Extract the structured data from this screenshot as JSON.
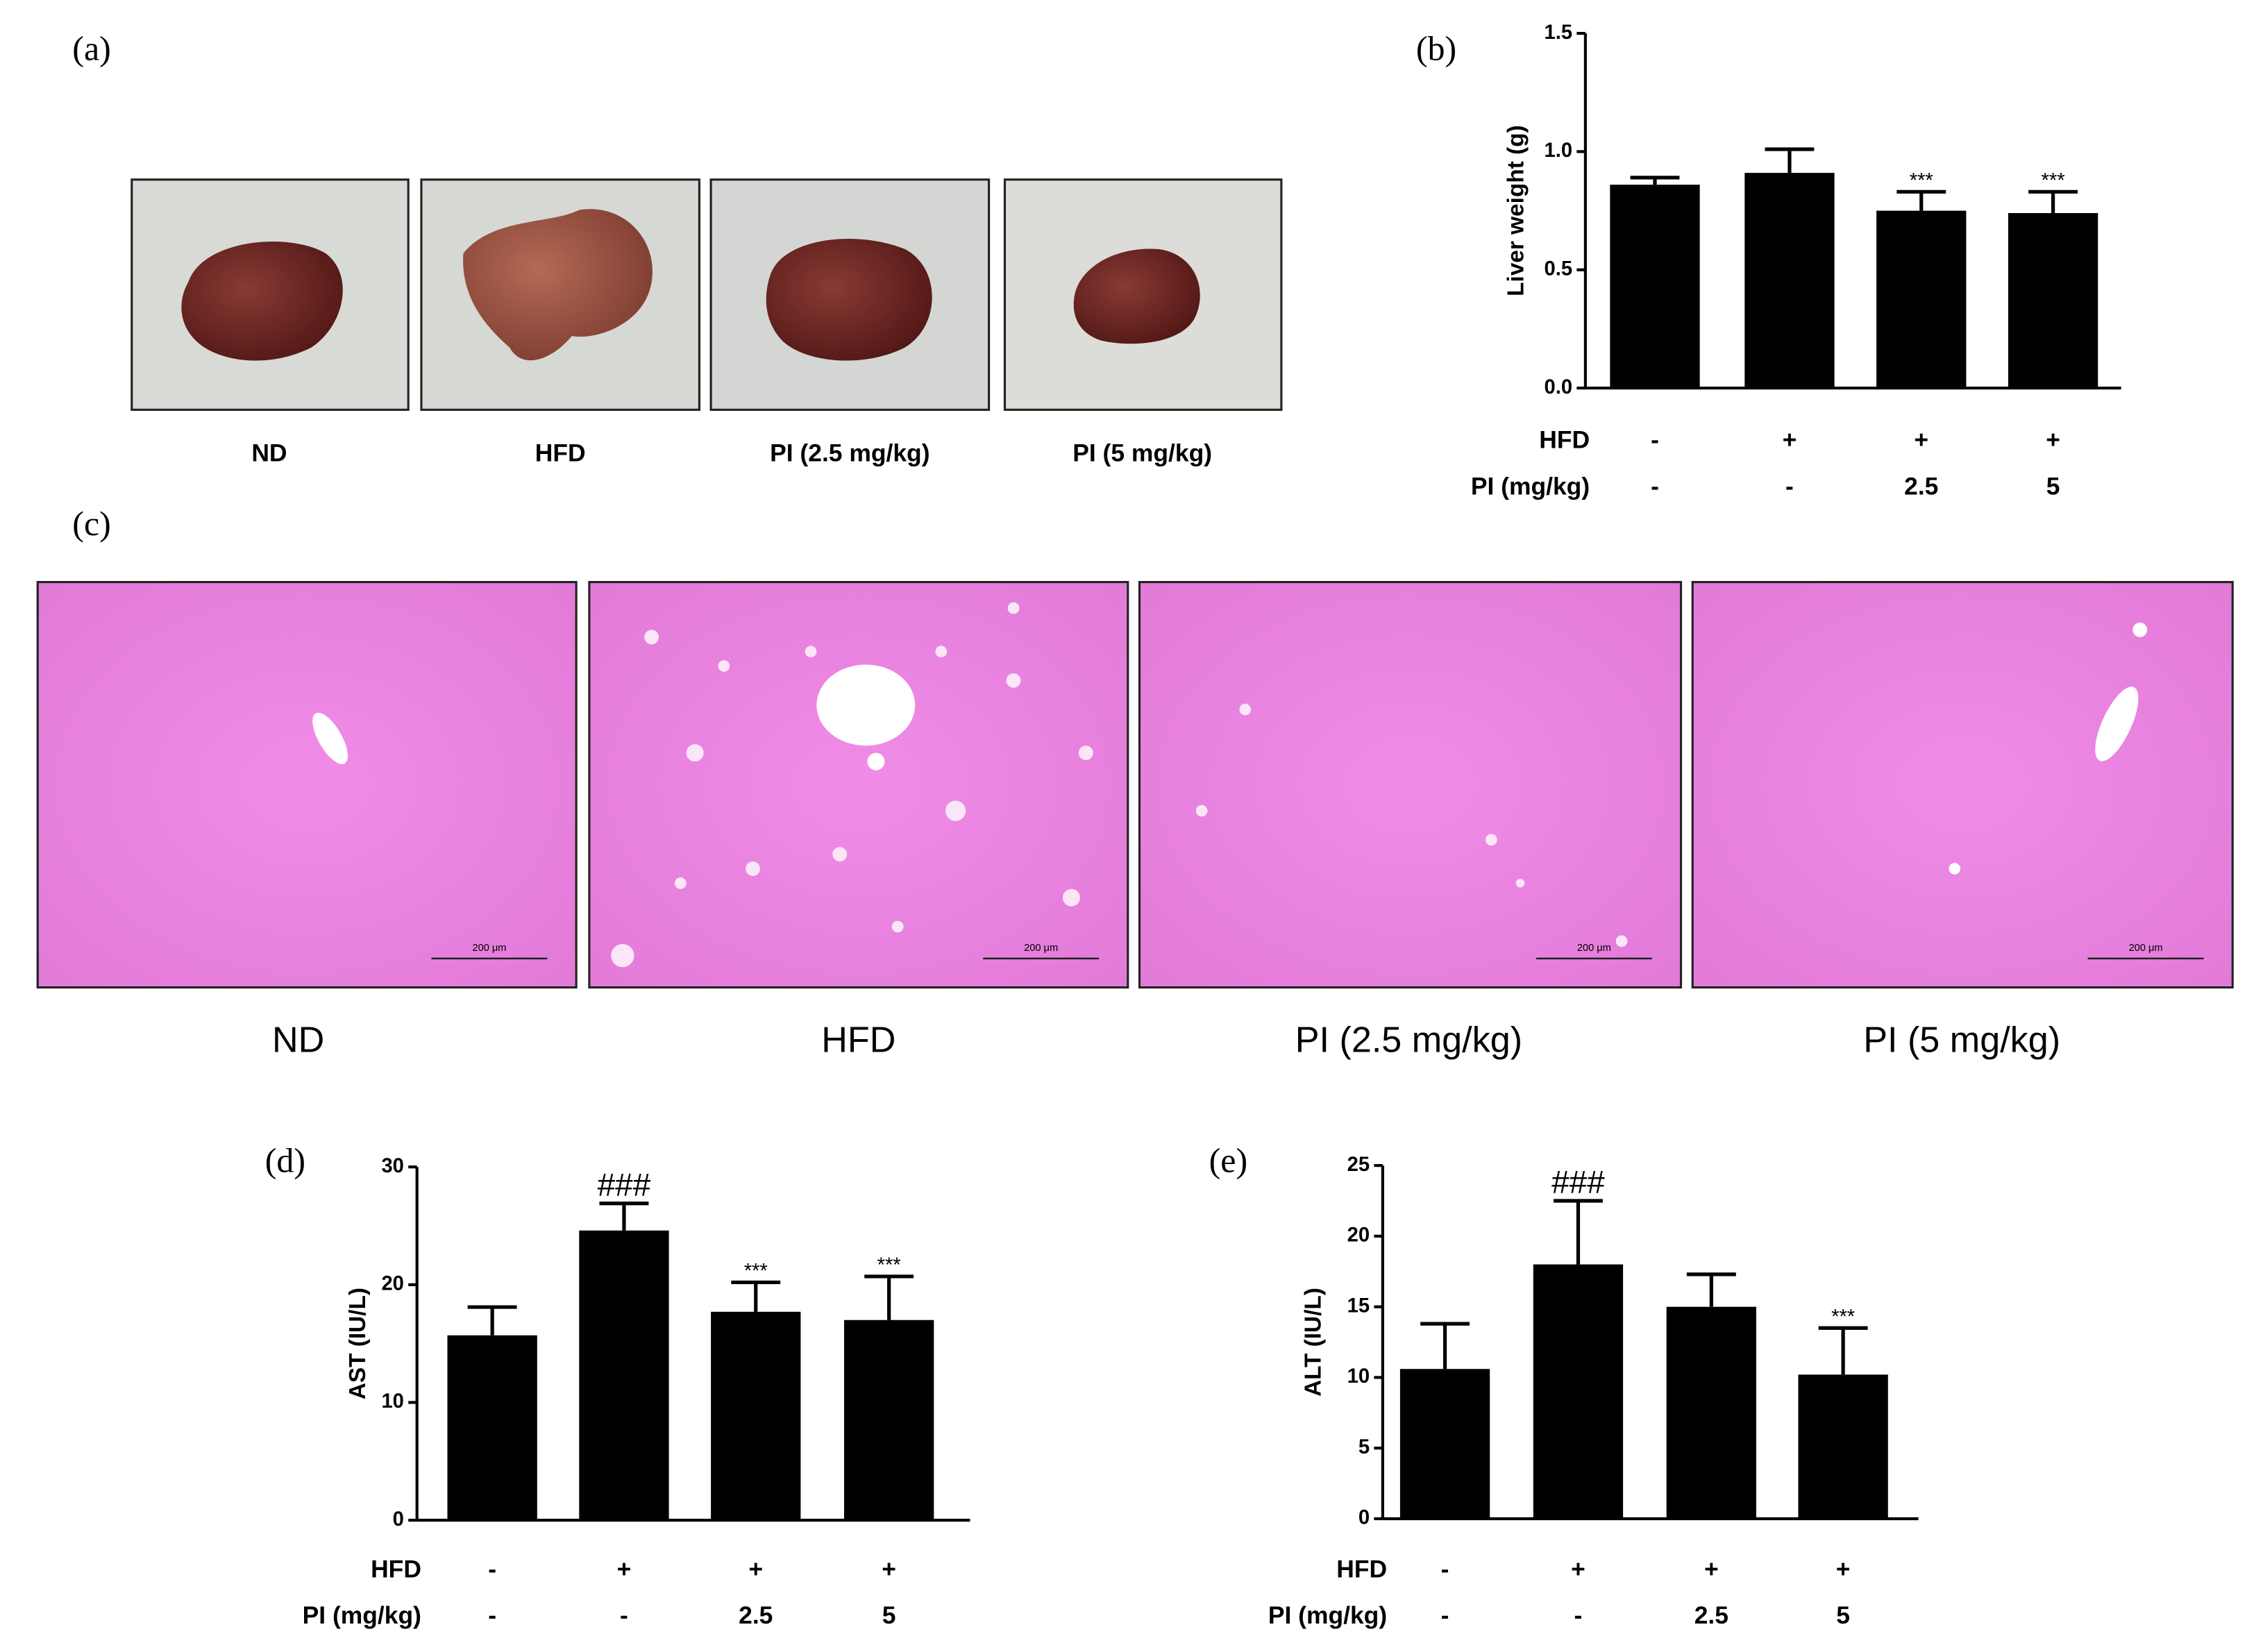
{
  "photo_panel": {
    "label": "(a)",
    "photos": [
      "ND",
      "HFD",
      "PI (2.5 mg/kg)",
      "PI (5 mg/kg)"
    ]
  },
  "histology_panel": {
    "label": "(c)",
    "scale_bar": "200 μm",
    "images": [
      "ND",
      "HFD",
      "PI (2.5 mg/kg)",
      "PI (5 mg/kg)"
    ]
  },
  "chart_data": [
    {
      "type": "bar",
      "panel_label": "(b)",
      "y_label": "Liver weight (g)",
      "values": [
        0.86,
        0.91,
        0.75,
        0.74
      ],
      "errors": [
        0.03,
        0.1,
        0.08,
        0.09
      ],
      "annotations": [
        null,
        null,
        "***",
        "***"
      ],
      "color": "#000000",
      "ylim": [
        0,
        1.5
      ],
      "yticks": [
        {
          "value": 0,
          "label": "0.0"
        },
        0.5,
        {
          "value": 1,
          "label": "1.0"
        },
        1.5
      ],
      "row_labels": [
        {
          "name": "HFD",
          "values": [
            "-",
            "+",
            "+",
            "+"
          ]
        },
        {
          "name": "PI (mg/kg)",
          "values": [
            "-",
            "-",
            "2.5",
            "5"
          ]
        }
      ]
    },
    {
      "type": "bar",
      "panel_label": "(d)",
      "y_label": "AST (IU/L)",
      "values": [
        15.7,
        24.6,
        17.7,
        17.0
      ],
      "errors": [
        2.4,
        2.3,
        2.5,
        3.7
      ],
      "annotations": [
        null,
        "###",
        "***",
        "***"
      ],
      "color": "#000000",
      "ylim": [
        0,
        30
      ],
      "yticks": [
        0,
        10,
        20,
        30
      ],
      "row_labels": [
        {
          "name": "HFD",
          "values": [
            "-",
            "+",
            "+",
            "+"
          ]
        },
        {
          "name": "PI (mg/kg)",
          "values": [
            "-",
            "-",
            "2.5",
            "5"
          ]
        }
      ]
    },
    {
      "type": "bar",
      "panel_label": "(e)",
      "y_label": "ALT (IU/L)",
      "values": [
        10.6,
        18.0,
        15.0,
        10.2
      ],
      "errors": [
        3.2,
        4.5,
        2.3,
        3.3
      ],
      "annotations": [
        null,
        "###",
        null,
        "***"
      ],
      "color": "#000000",
      "ylim": [
        0,
        25
      ],
      "yticks": [
        0,
        5,
        10,
        15,
        20,
        25
      ],
      "row_labels": [
        {
          "name": "HFD",
          "values": [
            "-",
            "+",
            "+",
            "+"
          ]
        },
        {
          "name": "PI (mg/kg)",
          "values": [
            "-",
            "-",
            "2.5",
            "5"
          ]
        }
      ]
    }
  ]
}
